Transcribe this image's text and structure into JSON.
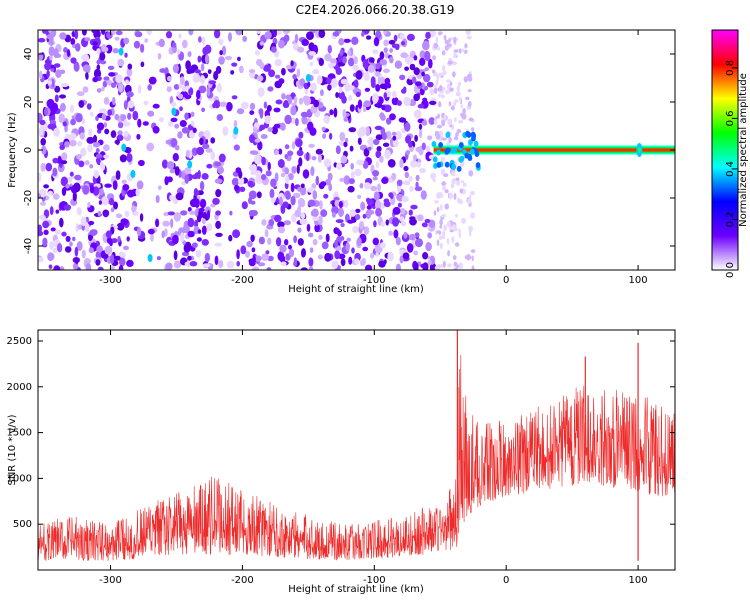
{
  "figure": {
    "title": "C2E4.2026.066.20.38.G19"
  },
  "chart_data": [
    {
      "type": "heatmap",
      "xlabel": "Height of straight line (km)",
      "ylabel": "Frequency (Hz)",
      "xlim": [
        -355,
        128
      ],
      "ylim": [
        -50,
        50
      ],
      "x_ticks": [
        -300,
        -200,
        -100,
        0,
        100
      ],
      "x_tick_labels": [
        "-300",
        "-200",
        "-100",
        "0",
        "100"
      ],
      "y_ticks": [
        -40,
        -20,
        0,
        20,
        40
      ],
      "y_tick_labels": [
        "-40",
        "-20",
        "0",
        "20",
        "40"
      ],
      "noise_region_x": [
        -355,
        -55
      ],
      "sparse_region_x": [
        -55,
        -25
      ],
      "tone": {
        "frequency_hz": 0,
        "x_start": -55,
        "x_end": 128,
        "amplitude": 0.9
      },
      "clear_bands": [
        {
          "x_start": -285,
          "x_end": -258
        },
        {
          "x_start": -215,
          "x_end": -195
        }
      ],
      "colorbar": {
        "label": "Normalized spectral amplitude",
        "range": [
          0.0,
          0.95
        ],
        "ticks": [
          0.0,
          0.2,
          0.4,
          0.6,
          0.8
        ],
        "tick_labels": [
          "0.0",
          "0.2",
          "0.4",
          "0.6",
          "0.8"
        ],
        "colors": [
          "#ffffff",
          "#6a00ff",
          "#0000ff",
          "#00ffff",
          "#00ff00",
          "#ffff00",
          "#ff0000",
          "#ff00ff"
        ]
      },
      "grid": false
    },
    {
      "type": "line",
      "xlabel": "Height of straight line (km)",
      "ylabel": "SNR (10 * v/v)",
      "xlim": [
        -355,
        128
      ],
      "ylim": [
        0,
        2620
      ],
      "x_ticks": [
        -300,
        -200,
        -100,
        0,
        100
      ],
      "x_tick_labels": [
        "-300",
        "-200",
        "-100",
        "0",
        "100"
      ],
      "y_ticks": [
        500,
        1000,
        1500,
        2000,
        2500
      ],
      "y_tick_labels": [
        "500",
        "1000",
        "1500",
        "2000",
        "2500"
      ],
      "line_color": "#ee2a2a",
      "envelope": {
        "x": [
          -355,
          -330,
          -300,
          -280,
          -260,
          -240,
          -220,
          -200,
          -180,
          -160,
          -140,
          -120,
          -100,
          -80,
          -60,
          -45,
          -38,
          -35,
          -30,
          -20,
          0,
          20,
          40,
          60,
          80,
          100,
          120,
          128
        ],
        "y_low": [
          100,
          100,
          100,
          120,
          150,
          160,
          170,
          160,
          150,
          120,
          110,
          110,
          120,
          140,
          170,
          220,
          200,
          400,
          550,
          700,
          800,
          850,
          900,
          950,
          900,
          850,
          800,
          800
        ],
        "y_high": [
          500,
          600,
          500,
          650,
          800,
          900,
          1050,
          900,
          750,
          650,
          550,
          500,
          550,
          600,
          700,
          750,
          1200,
          2600,
          1800,
          1600,
          1650,
          1750,
          1900,
          2050,
          2000,
          2000,
          1800,
          1700
        ]
      },
      "spikes": [
        {
          "x": -37,
          "y": 2620
        },
        {
          "x": 100,
          "y": 2480
        },
        {
          "x": 60,
          "y": 2330
        },
        {
          "x": 100,
          "y": 100
        }
      ],
      "grid": false
    }
  ]
}
